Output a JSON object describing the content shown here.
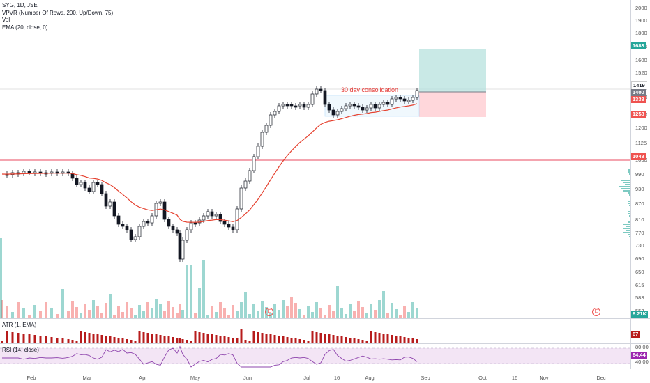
{
  "legend": {
    "symbol": "SYG, 1D, JSE",
    "vpvr": "VPVR (Number Of Rows, 200, Up/Down, 75)",
    "vol": "Vol",
    "ema": "EMA (20, close, 0)"
  },
  "annotation": "30 day consolidation",
  "atr_label": "ATR (1, EMA)",
  "rsi_label": "RSI (14, close)",
  "price_axis": [
    "2000",
    "1900",
    "1800",
    "1700",
    "1600",
    "1520",
    "1440",
    "1360",
    "1280",
    "1200",
    "1125",
    "1050",
    "990",
    "930",
    "870",
    "810",
    "770",
    "730",
    "690",
    "650",
    "615",
    "583",
    "553"
  ],
  "price_badges": [
    {
      "text": "1683",
      "color": "#26a69a"
    },
    {
      "text": "1419",
      "color": "#ffffff",
      "fg": "#131722"
    },
    {
      "text": "1400",
      "color": "#787b86"
    },
    {
      "text": "1338",
      "color": "#ef5350"
    },
    {
      "text": "1258",
      "color": "#ef5350"
    },
    {
      "text": "1048",
      "color": "#ef5350"
    },
    {
      "text": "8.21K",
      "color": "#26a69a"
    }
  ],
  "atr_value": "67",
  "rsi_axis": [
    "80.00",
    "40.00"
  ],
  "rsi_value": "64.44",
  "time_axis": [
    "Feb",
    "Mar",
    "Apr",
    "May",
    "Jun",
    "Jul",
    "16",
    "Aug",
    "Sep",
    "Oct",
    "16",
    "Nov",
    "Dec"
  ],
  "events": [
    "E",
    "E"
  ],
  "colors": {
    "up": "#26a69a",
    "down": "#ef5350",
    "ema": "#e5412f",
    "hline": "#e84a5f",
    "rsi": "#8e44ad",
    "target": "#b2dfdb",
    "stop": "#ffcdd2"
  }
}
